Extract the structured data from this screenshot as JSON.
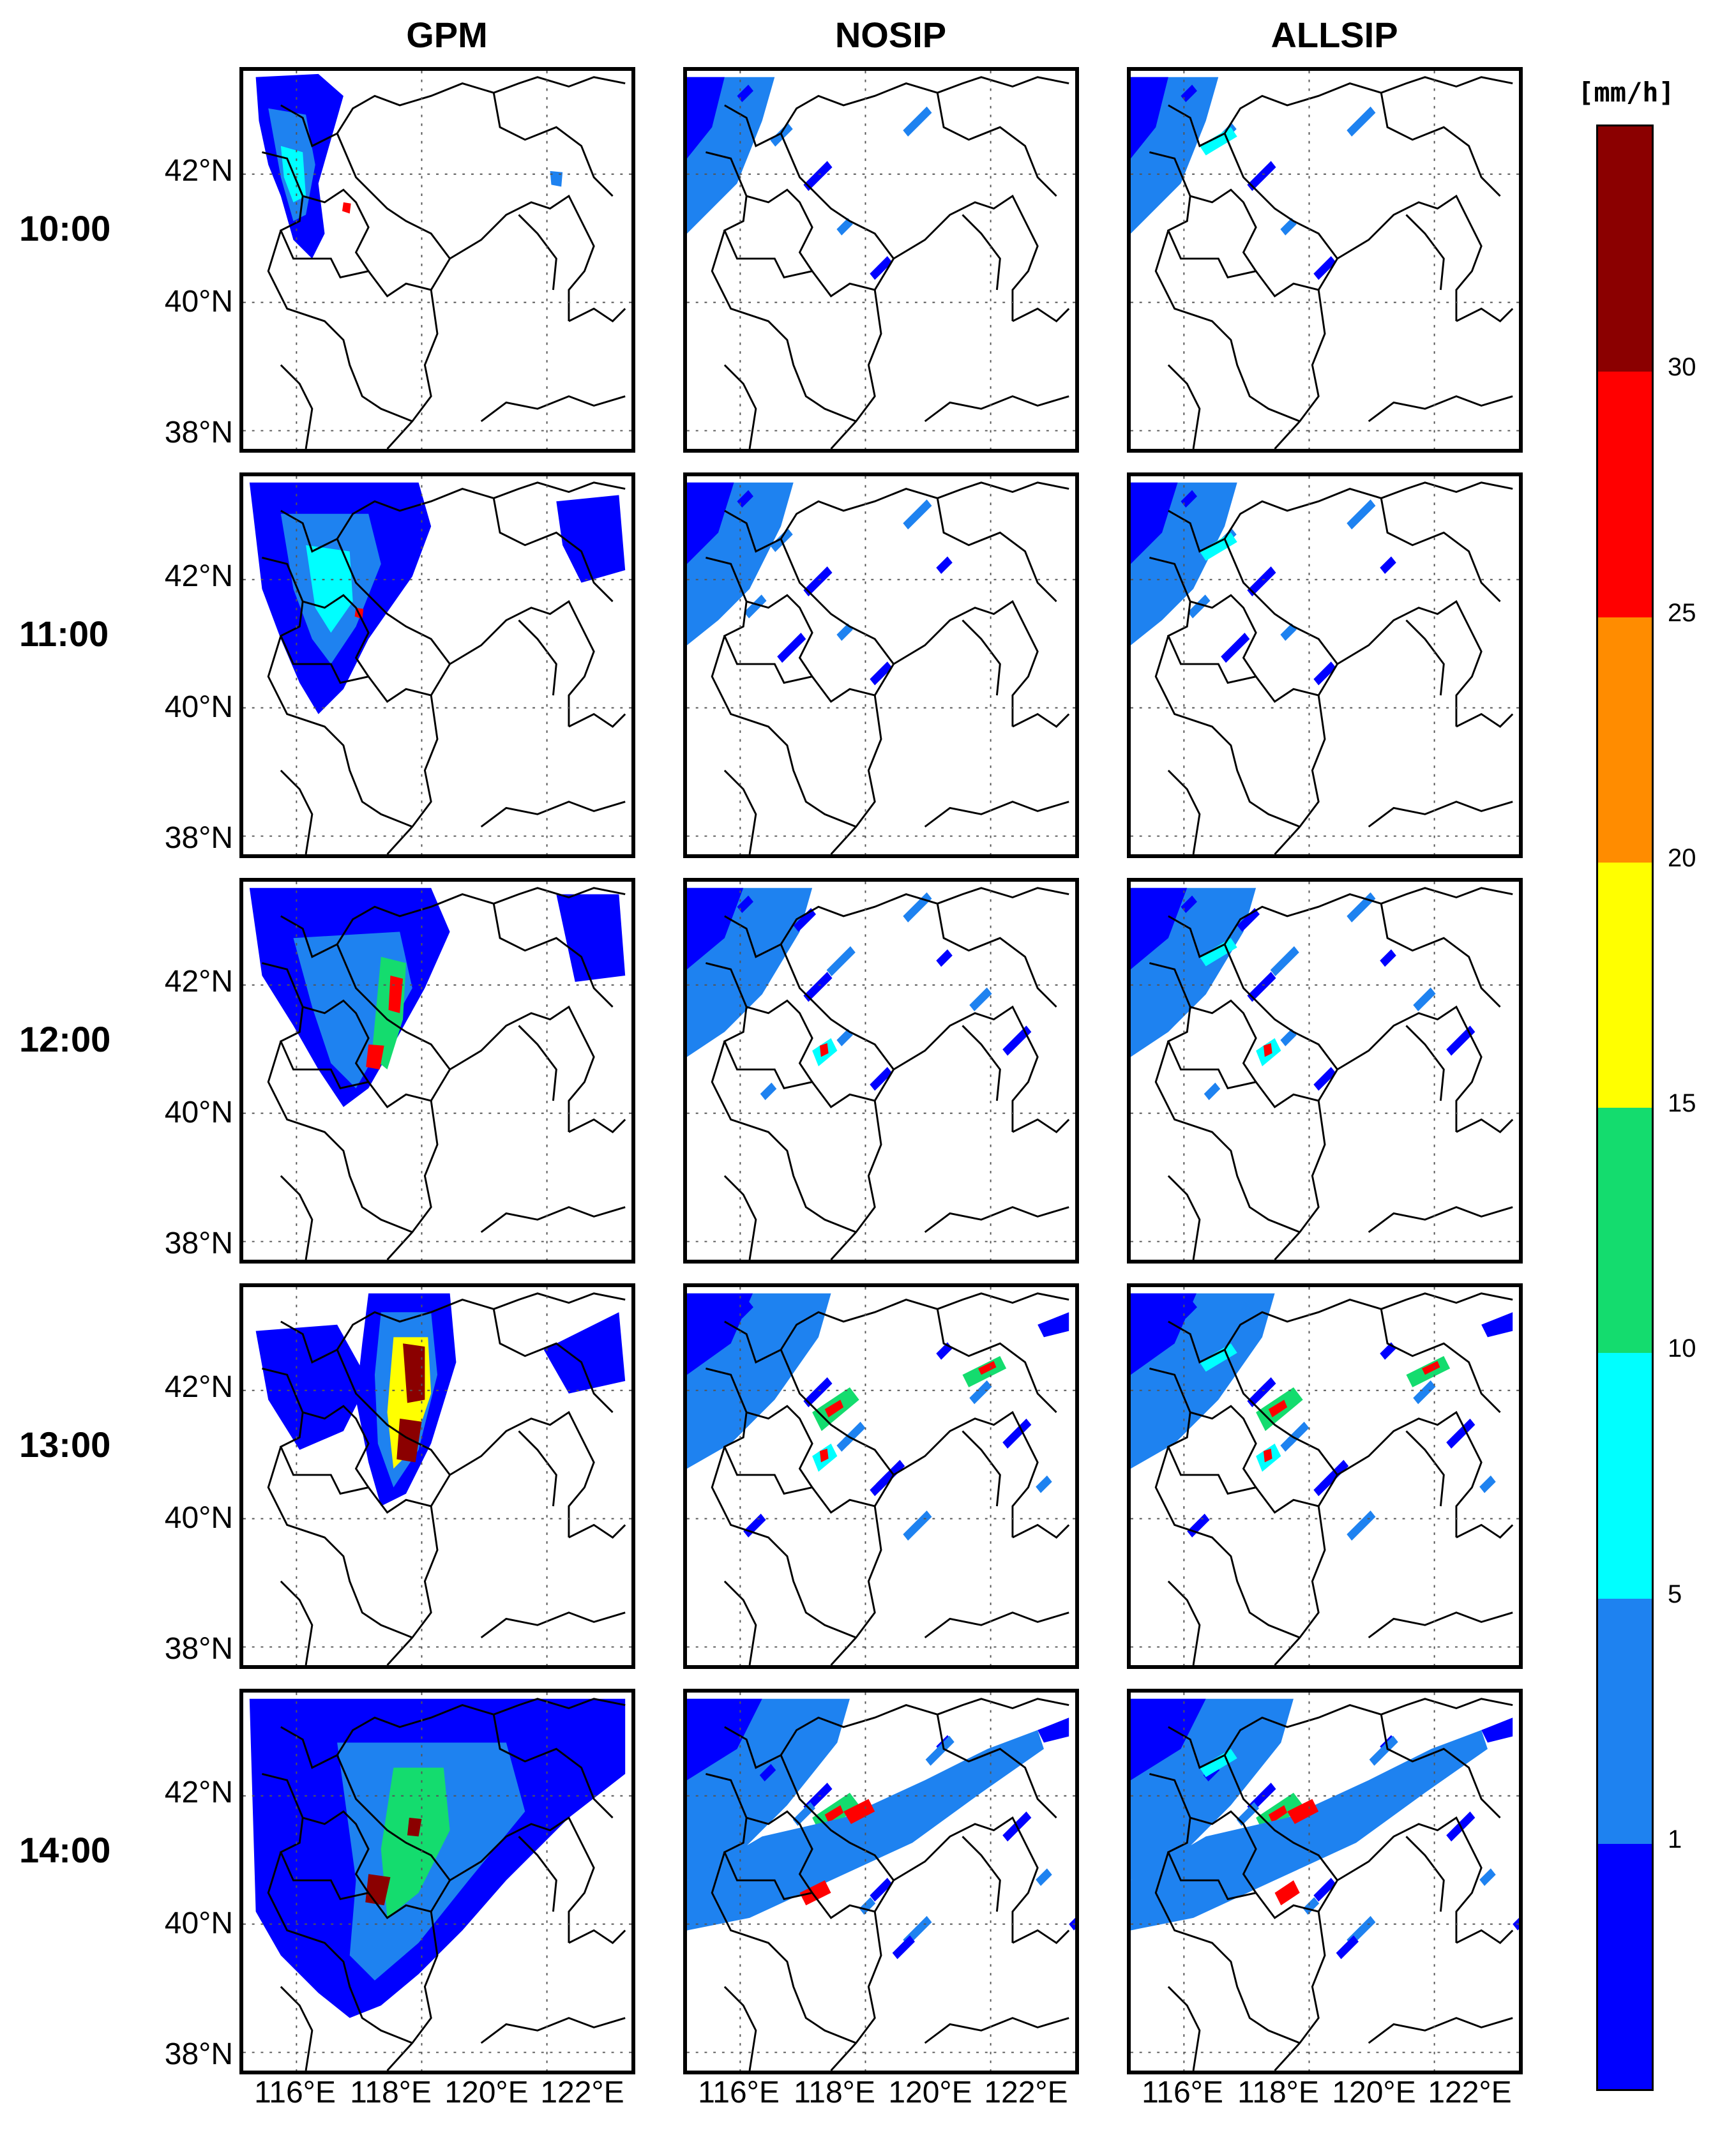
{
  "columns": [
    {
      "id": "gpm",
      "label": "GPM"
    },
    {
      "id": "nosip",
      "label": "NOSIP"
    },
    {
      "id": "allsip",
      "label": "ALLSIP"
    }
  ],
  "rows": [
    {
      "time": "10:00"
    },
    {
      "time": "11:00"
    },
    {
      "time": "12:00"
    },
    {
      "time": "13:00"
    },
    {
      "time": "14:00"
    }
  ],
  "lat_labels": [
    "42°N",
    "40°N",
    "38°N"
  ],
  "lon_labels": [
    "116°E",
    "118°E",
    "120°E",
    "122°E"
  ],
  "colorbar": {
    "unit": "[mm/h]",
    "ticks": [
      "1",
      "5",
      "10",
      "15",
      "20",
      "25",
      "30"
    ],
    "colors": [
      "#0000ff",
      "#1e82f0",
      "#00ffff",
      "#14dc6e",
      "#ffff00",
      "#ff8c00",
      "#ff0000",
      "#8b0000"
    ]
  }
}
